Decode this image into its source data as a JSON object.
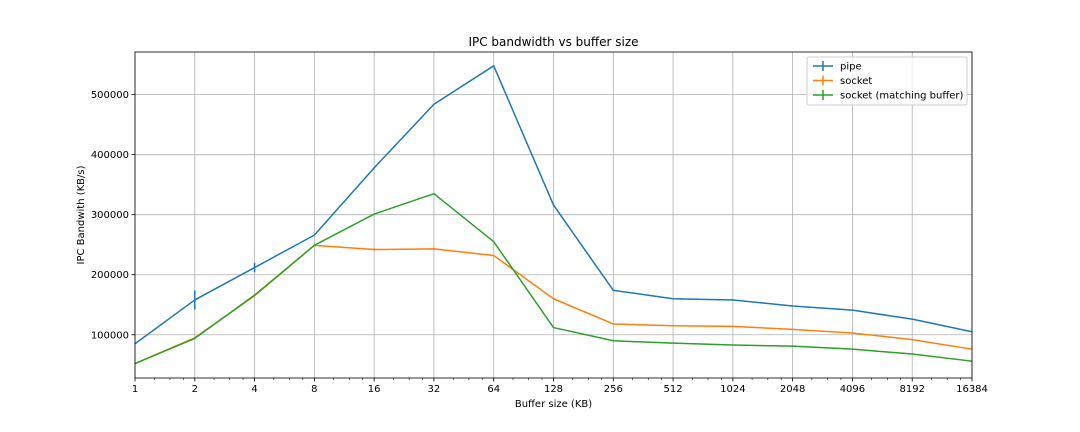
{
  "chart_data": {
    "type": "line",
    "title": "IPC bandwidth vs buffer size",
    "xlabel": "Buffer size (KB)",
    "ylabel": "IPC Bandwith (KB/s)",
    "x_scale": "log2",
    "x": [
      1,
      2,
      4,
      8,
      16,
      32,
      64,
      128,
      256,
      512,
      1024,
      2048,
      4096,
      8192,
      16384
    ],
    "x_tick_labels": [
      "1",
      "2",
      "4",
      "8",
      "16",
      "32",
      "64",
      "128",
      "256",
      "512",
      "1024",
      "2048",
      "4096",
      "8192",
      "16384"
    ],
    "y_ticks": [
      100000,
      200000,
      300000,
      400000,
      500000
    ],
    "y_tick_labels": [
      "100000",
      "200000",
      "300000",
      "400000",
      "500000"
    ],
    "xlim": [
      1,
      16384
    ],
    "ylim": [
      28000,
      571000
    ],
    "grid": true,
    "legend_position": "top-right",
    "series": [
      {
        "name": "pipe",
        "color": "#1f77b4",
        "values": [
          85000,
          158000,
          212000,
          266000,
          378000,
          484000,
          548000,
          316000,
          174000,
          160000,
          158000,
          148000,
          141000,
          126000,
          105000
        ],
        "errors": [
          0,
          16000,
          8000,
          0,
          0,
          0,
          0,
          0,
          0,
          0,
          0,
          0,
          0,
          0,
          0
        ]
      },
      {
        "name": "socket",
        "color": "#ff7f0e",
        "values": [
          52000,
          95000,
          165000,
          249000,
          242000,
          243000,
          232000,
          160000,
          118000,
          115000,
          114000,
          109000,
          103000,
          92000,
          76000
        ],
        "errors": [
          0,
          0,
          0,
          0,
          2000,
          2000,
          0,
          0,
          0,
          0,
          0,
          0,
          0,
          0,
          0
        ]
      },
      {
        "name": "socket (matching buffer)",
        "color": "#2ca02c",
        "values": [
          52000,
          94000,
          166000,
          249000,
          301000,
          335000,
          255000,
          112000,
          90000,
          86000,
          83000,
          81000,
          76000,
          68000,
          56000
        ],
        "errors": [
          0,
          0,
          0,
          0,
          0,
          0,
          0,
          0,
          0,
          0,
          0,
          0,
          0,
          0,
          0
        ]
      }
    ]
  }
}
